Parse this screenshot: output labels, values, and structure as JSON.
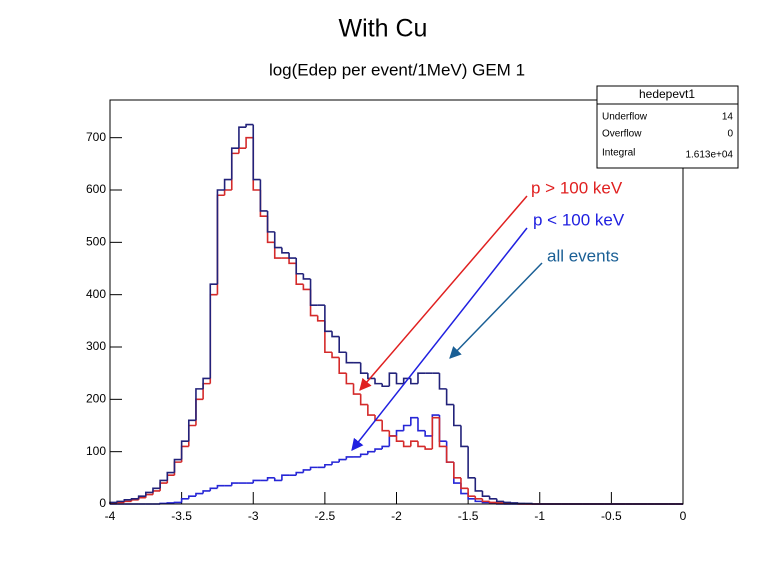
{
  "chart_data": {
    "type": "histogram",
    "title": "With Cu",
    "subtitle": "log(Edep per event/1MeV) GEM 1",
    "bins": [
      -4,
      -3.95,
      -3.9,
      -3.85,
      -3.8,
      -3.75,
      -3.7,
      -3.65,
      -3.6,
      -3.55,
      -3.5,
      -3.45,
      -3.4,
      -3.35,
      -3.3,
      -3.25,
      -3.2,
      -3.15,
      -3.1,
      -3.05,
      -3,
      -2.95,
      -2.9,
      -2.85,
      -2.8,
      -2.75,
      -2.7,
      -2.65,
      -2.6,
      -2.55,
      -2.5,
      -2.45,
      -2.4,
      -2.35,
      -2.3,
      -2.25,
      -2.2,
      -2.15,
      -2.1,
      -2.05,
      -2,
      -1.95,
      -1.9,
      -1.85,
      -1.8,
      -1.75,
      -1.7,
      -1.65,
      -1.6,
      -1.55,
      -1.5,
      -1.45,
      -1.4,
      -1.35,
      -1.3,
      -1.25,
      -1.2,
      -1.15,
      -1.1,
      -1.05,
      -1,
      -0.95,
      -0.9,
      -0.85,
      -0.8,
      -0.75,
      -0.7,
      -0.65,
      -0.6,
      -0.55,
      -0.5,
      -0.45,
      -0.4,
      -0.35,
      -0.3,
      -0.25,
      -0.2,
      -0.15,
      -0.1,
      -0.05,
      0
    ],
    "series": [
      {
        "name": "all events",
        "color": "#22227a",
        "values": [
          3,
          5,
          8,
          10,
          15,
          22,
          30,
          45,
          60,
          85,
          120,
          160,
          220,
          240,
          420,
          600,
          620,
          680,
          720,
          725,
          620,
          560,
          520,
          490,
          480,
          470,
          440,
          430,
          380,
          380,
          330,
          320,
          290,
          270,
          270,
          250,
          240,
          230,
          225,
          250,
          230,
          240,
          230,
          250,
          250,
          250,
          220,
          190,
          150,
          110,
          50,
          25,
          15,
          10,
          5,
          3,
          2,
          1,
          1,
          0,
          0,
          0,
          0,
          0,
          0,
          0,
          0,
          0,
          0,
          0,
          0,
          0,
          0,
          0,
          0,
          0,
          0,
          0,
          0,
          0
        ]
      },
      {
        "name": "p > 100 keV",
        "color": "#d42a2a",
        "values": [
          2,
          3,
          5,
          8,
          12,
          18,
          25,
          40,
          55,
          80,
          110,
          150,
          200,
          230,
          400,
          590,
          600,
          670,
          680,
          700,
          600,
          550,
          500,
          470,
          470,
          460,
          420,
          410,
          360,
          350,
          290,
          280,
          250,
          230,
          210,
          190,
          170,
          160,
          140,
          130,
          120,
          110,
          120,
          110,
          105,
          165,
          110,
          80,
          50,
          30,
          15,
          10,
          5,
          3,
          2,
          1,
          1,
          0,
          0,
          0,
          0,
          0,
          0,
          0,
          0,
          0,
          0,
          0,
          0,
          0,
          0,
          0,
          0,
          0,
          0,
          0,
          0,
          0,
          0,
          0
        ]
      },
      {
        "name": "p < 100 keV",
        "color": "#2626d6",
        "values": [
          0,
          0,
          0,
          0,
          0,
          0,
          0,
          1,
          2,
          3,
          10,
          15,
          20,
          25,
          30,
          35,
          35,
          40,
          40,
          40,
          45,
          45,
          50,
          45,
          55,
          55,
          60,
          65,
          70,
          70,
          75,
          80,
          85,
          90,
          90,
          95,
          100,
          105,
          110,
          130,
          140,
          150,
          165,
          140,
          130,
          170,
          120,
          80,
          40,
          20,
          10,
          5,
          3,
          1,
          0,
          0,
          0,
          0,
          0,
          0,
          0,
          0,
          0,
          0,
          0,
          0,
          0,
          0,
          0,
          0,
          0,
          0,
          0,
          0,
          0,
          0,
          0,
          0,
          0,
          0
        ]
      }
    ],
    "xlim": [
      -4,
      0
    ],
    "ylim": [
      0,
      772
    ],
    "xticks": [
      -4,
      -3.5,
      -3,
      -2.5,
      -2,
      -1.5,
      -1,
      -0.5,
      0
    ],
    "yticks": [
      0,
      100,
      200,
      300,
      400,
      500,
      600,
      700
    ],
    "stats": {
      "title": "hedepevt1",
      "rows": [
        [
          "Underflow",
          "14"
        ],
        [
          "Overflow",
          "0"
        ],
        [
          "Integral",
          "1.613e+04"
        ]
      ]
    }
  }
}
